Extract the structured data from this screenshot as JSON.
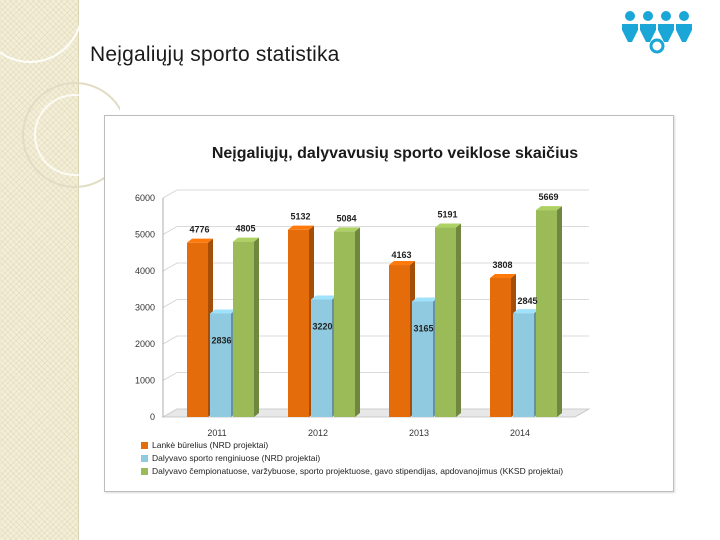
{
  "page": {
    "title": "Neįgaliųjų sporto statistika"
  },
  "colors": {
    "orange": "#E46C0A",
    "blue": "#8FCAE0",
    "green": "#9BBB59",
    "logo": "#1AA7D8"
  },
  "chart_data": {
    "type": "bar",
    "title": "Neįgaliųjų, dalyvavusių sporto veiklose skaičius",
    "categories": [
      "2011",
      "2012",
      "2013",
      "2014"
    ],
    "yticks": [
      "0",
      "1000",
      "2000",
      "3000",
      "4000",
      "5000",
      "6000"
    ],
    "ylim": [
      0,
      6000
    ],
    "xlabel": "",
    "ylabel": "",
    "series": [
      {
        "name": "Lankė būrelius (NRD projektai)",
        "color": "#E46C0A",
        "values": [
          4776,
          5132,
          4163,
          3808
        ],
        "labels": [
          "4776",
          "5132",
          "4163",
          "3808"
        ]
      },
      {
        "name": "Dalyvavo sporto renginiuose (NRD projektai)",
        "color": "#8FCAE0",
        "values": [
          2836,
          3220,
          3165,
          2845
        ],
        "labels": [
          "2836",
          "3220",
          "3165",
          "2845"
        ]
      },
      {
        "name": "Dalyvavo čempionatuose, varžybuose, sporto projektuose, gavo stipendijas, apdovanojimus (KKSD projektai)",
        "color": "#9BBB59",
        "values": [
          4805,
          5084,
          5191,
          5669
        ],
        "labels": [
          "4805",
          "5084",
          "5191",
          "5669"
        ]
      }
    ]
  }
}
